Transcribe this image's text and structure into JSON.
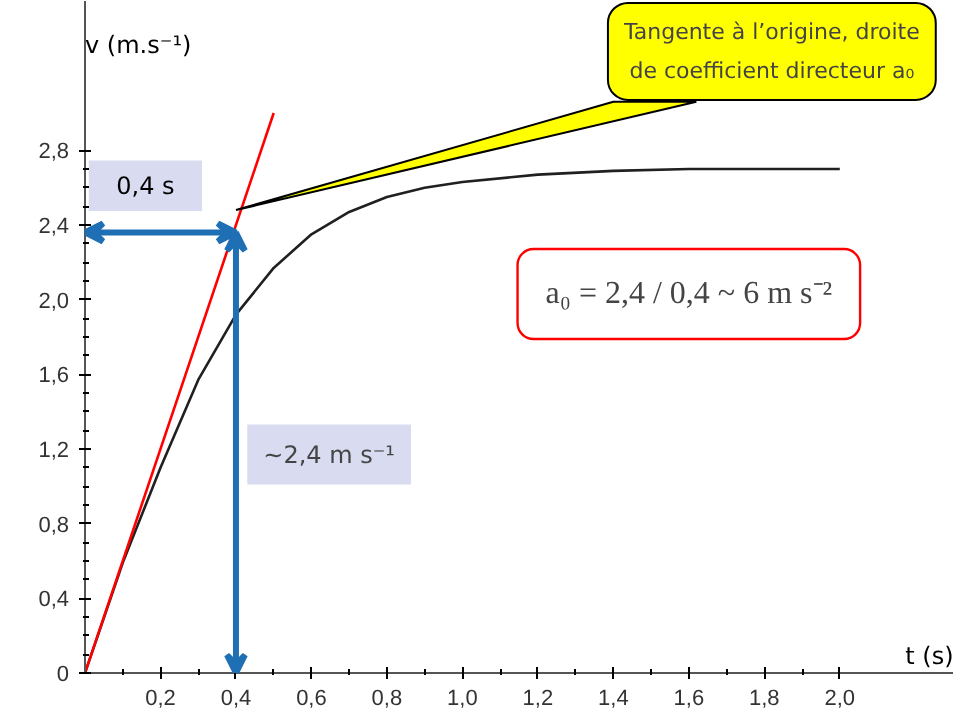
{
  "chart_data": {
    "type": "line",
    "xlabel": "t (s)",
    "ylabel": "v (m.s⁻¹)",
    "x": [
      0,
      0.1,
      0.2,
      0.3,
      0.4,
      0.5,
      0.6,
      0.7,
      0.8,
      0.9,
      1.0,
      1.2,
      1.4,
      1.6,
      1.8,
      2.0
    ],
    "series": [
      {
        "color": "#202020",
        "values": [
          0,
          0.59,
          1.1,
          1.57,
          1.92,
          2.17,
          2.35,
          2.47,
          2.55,
          2.6,
          2.63,
          2.67,
          2.69,
          2.7,
          2.7,
          2.7
        ]
      },
      {
        "type": "line",
        "color": "#ff0000",
        "x": [
          0,
          0.5
        ],
        "values": [
          0,
          3.0
        ]
      }
    ],
    "xlim": [
      0,
      2.3
    ],
    "ylim": [
      0,
      3.6
    ],
    "xticks": [
      {
        "value": 0.2,
        "label": "0,2"
      },
      {
        "value": 0.4,
        "label": "0,4"
      },
      {
        "value": 0.6,
        "label": "0,6"
      },
      {
        "value": 0.8,
        "label": "0,8"
      },
      {
        "value": 1.0,
        "label": "1,0"
      },
      {
        "value": 1.2,
        "label": "1,2"
      },
      {
        "value": 1.4,
        "label": "1,4"
      },
      {
        "value": 1.6,
        "label": "1,6"
      },
      {
        "value": 1.8,
        "label": "1,8"
      },
      {
        "value": 2.0,
        "label": "2,0"
      }
    ],
    "yticks": [
      0,
      {
        "value": 0.4,
        "label": "0,4"
      },
      {
        "value": 0.8,
        "label": "0,8"
      },
      {
        "value": 1.2,
        "label": "1,2"
      },
      {
        "value": 1.6,
        "label": "1,6"
      },
      {
        "value": 2.0,
        "label": "2,0"
      },
      {
        "value": 2.4,
        "label": "2,4"
      },
      {
        "value": 2.8,
        "label": "2,8"
      }
    ],
    "annotations": [
      {
        "text": "0,4 s",
        "x": 0.4,
        "y": 2.36
      },
      "~2,4 m s⁻¹",
      {
        "text": "Tangente à l’origine, droite de coefficient directeur a₀",
        "x": 0.4,
        "y": 2.48
      },
      "a₀ = 2,4 / 0,4 ~ 6 m s⁻²"
    ],
    "grid": false,
    "marker": "none",
    "line_style": "solid"
  }
}
